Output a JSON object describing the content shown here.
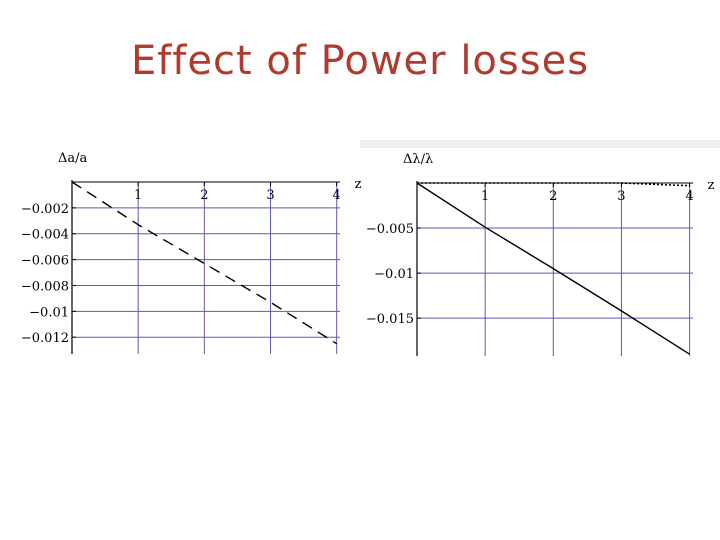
{
  "slide": {
    "title": "Effect of Power losses"
  },
  "colors": {
    "title": "#b03a2e",
    "grid": "#5b5bb3",
    "line": "#000000",
    "bg": "#ffffff"
  },
  "chart_data": [
    {
      "type": "line",
      "title": "",
      "ylabel": "Δa/a",
      "xlabel": "z",
      "xlim": [
        0,
        4.05
      ],
      "ylim": [
        -0.0133,
        0.0
      ],
      "xticks": [
        1,
        2,
        3,
        4
      ],
      "xtick_labels": [
        "1",
        "2",
        "3",
        "4"
      ],
      "yticks": [
        -0.002,
        -0.004,
        -0.006,
        -0.008,
        -0.01,
        -0.012
      ],
      "ytick_labels": [
        "−0.002",
        "−0.004",
        "−0.006",
        "−0.008",
        "−0.01",
        "−0.012"
      ],
      "grid": true,
      "series": [
        {
          "style": "dashed",
          "x": [
            0,
            1,
            2,
            3,
            4
          ],
          "y": [
            0,
            -0.0033,
            -0.0063,
            -0.0093,
            -0.0125
          ]
        }
      ]
    },
    {
      "type": "line",
      "title": "",
      "ylabel": "Δλ/λ",
      "xlabel": "z",
      "xlim": [
        0,
        4.05
      ],
      "ylim": [
        -0.0192,
        0.0
      ],
      "xticks": [
        1,
        2,
        3,
        4
      ],
      "xtick_labels": [
        "1",
        "2",
        "3",
        "4"
      ],
      "yticks": [
        -0.005,
        -0.01,
        -0.015
      ],
      "ytick_labels": [
        "−0.005",
        "−0.01",
        "−0.015"
      ],
      "grid": true,
      "series": [
        {
          "style": "solid",
          "x": [
            0,
            1,
            2,
            3,
            4
          ],
          "y": [
            0,
            -0.0049,
            -0.0095,
            -0.0142,
            -0.019
          ]
        },
        {
          "style": "dotted",
          "x": [
            0,
            1,
            2,
            3,
            4
          ],
          "y": [
            0,
            0,
            0,
            0,
            -0.0003
          ]
        }
      ]
    }
  ]
}
